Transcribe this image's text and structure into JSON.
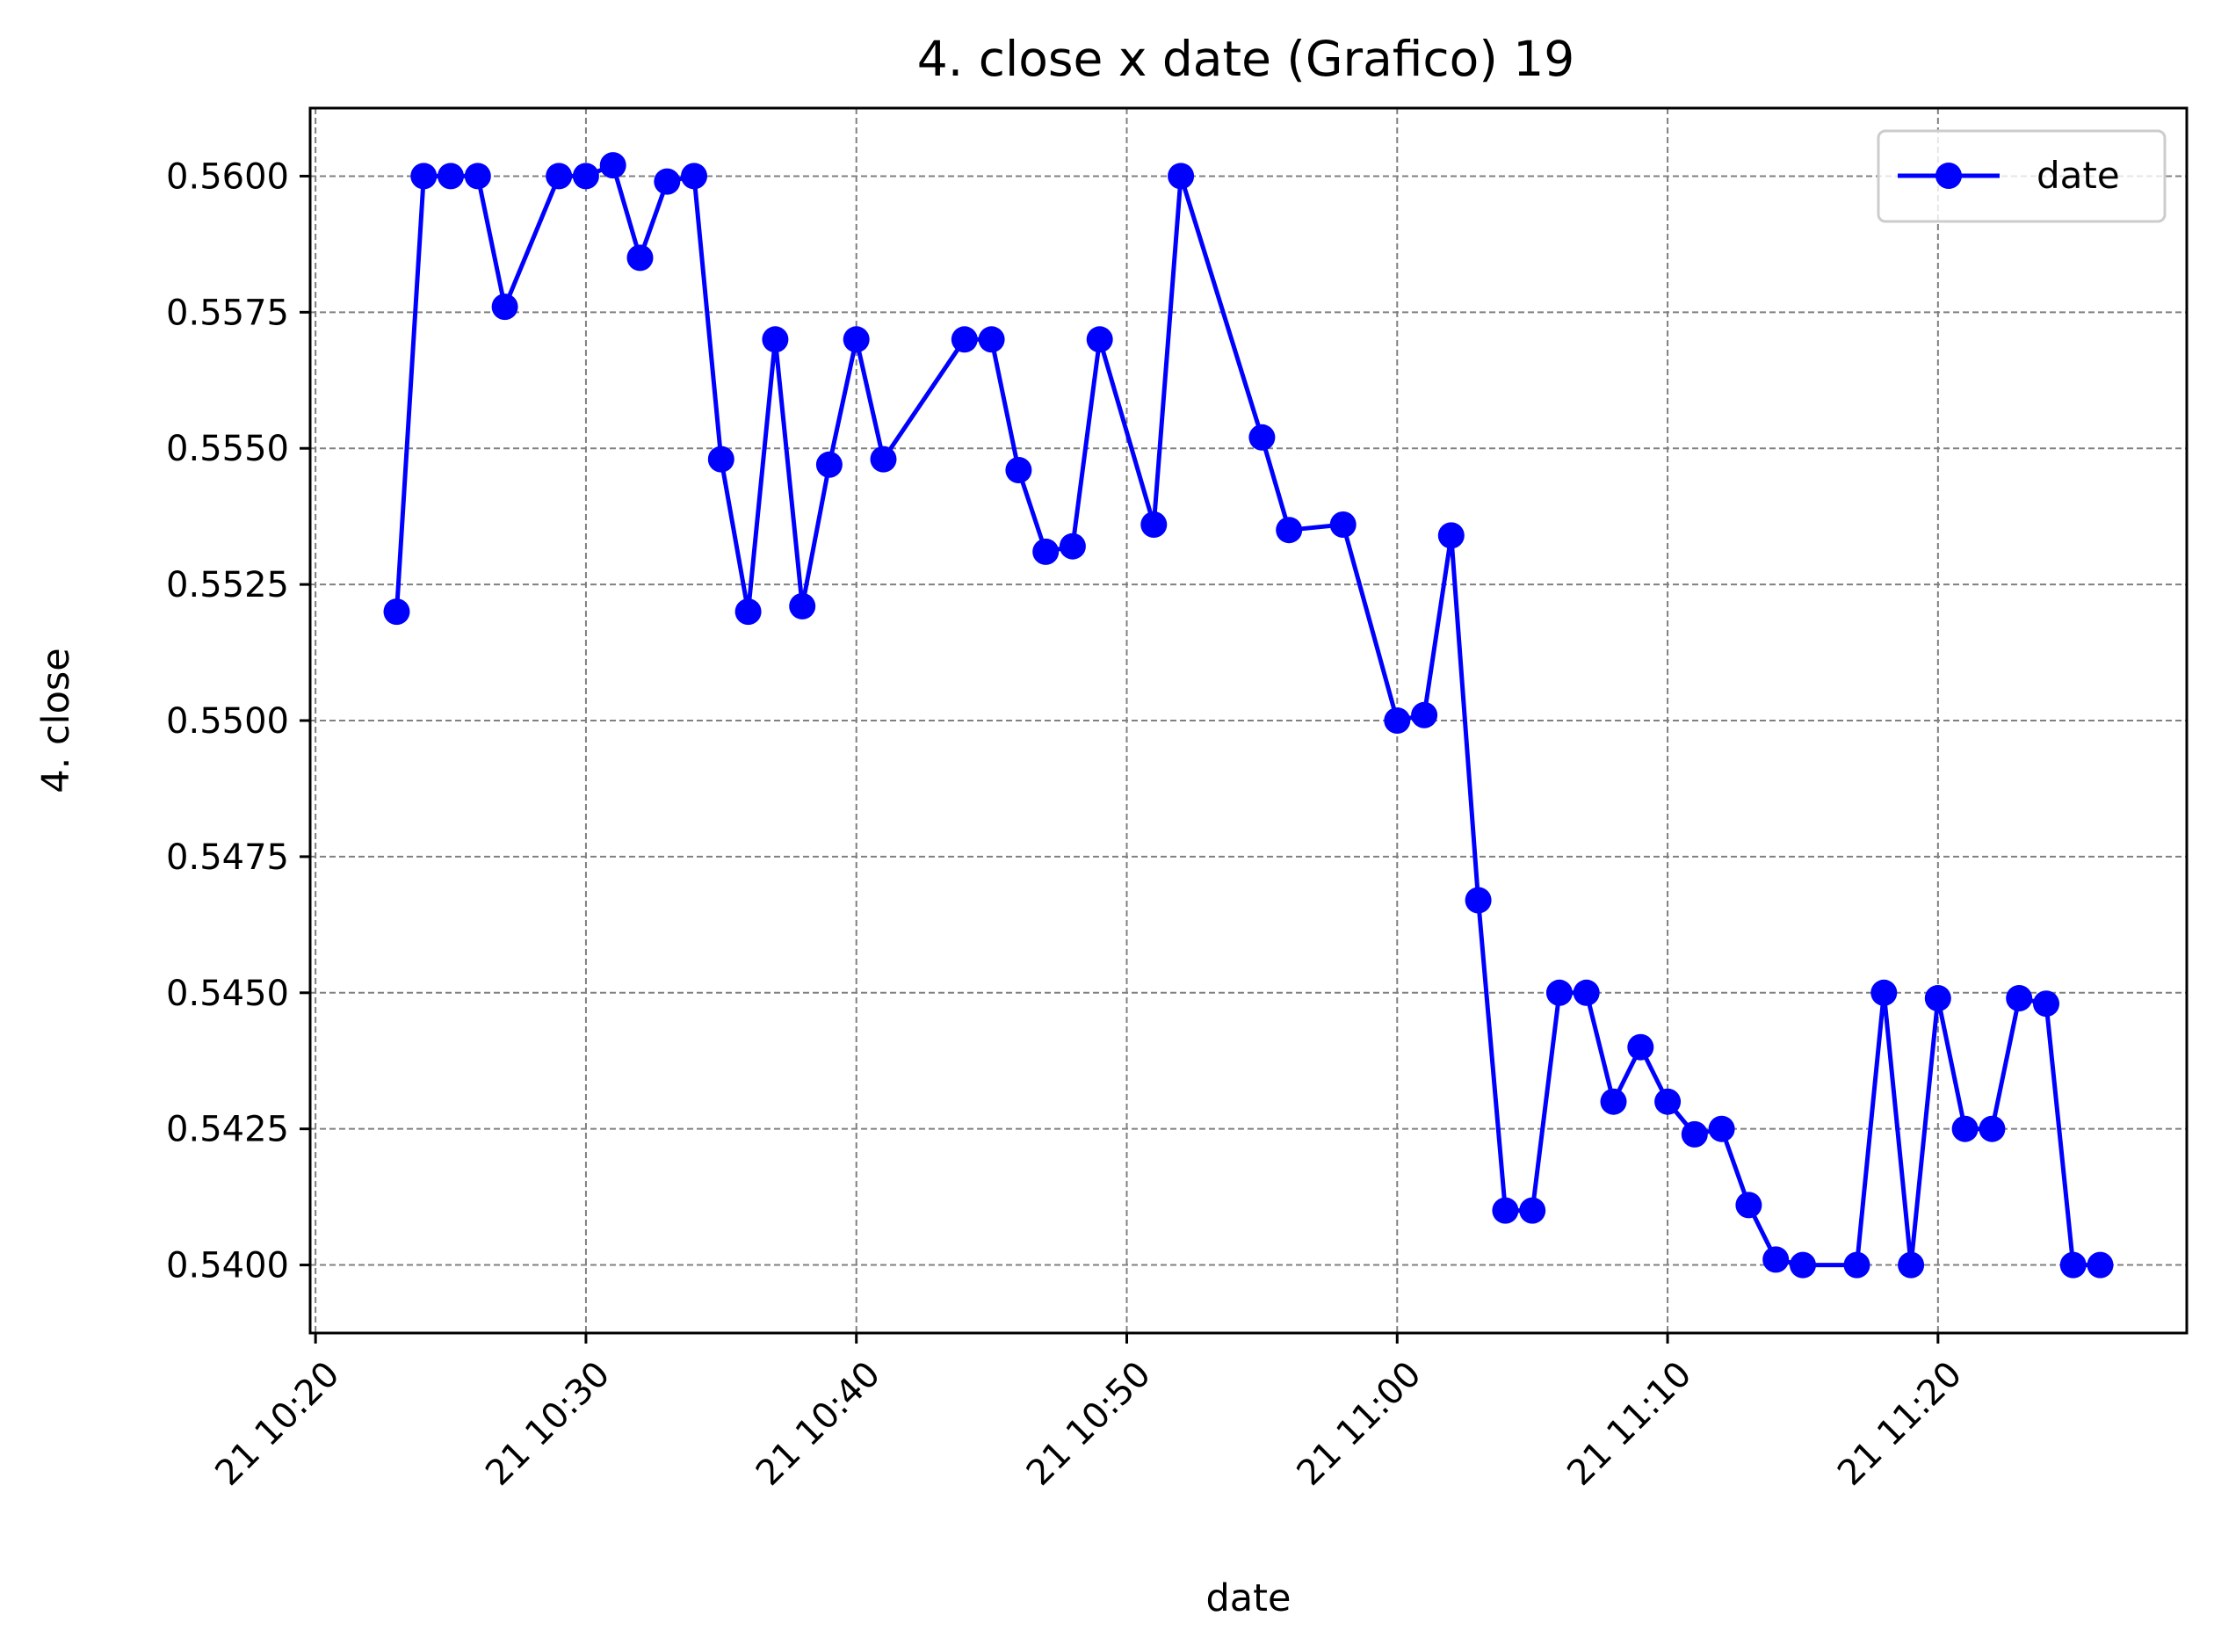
{
  "chart_data": {
    "type": "line",
    "title": "4. close x date (Grafico) 19",
    "xlabel": "date",
    "ylabel": "4. close",
    "xlim": [
      -0.2,
      69.2
    ],
    "ylim": [
      0.53875,
      0.56125
    ],
    "x_ticks": [
      {
        "value": 0,
        "label": "21 10:20"
      },
      {
        "value": 10,
        "label": "21 10:30"
      },
      {
        "value": 20,
        "label": "21 10:40"
      },
      {
        "value": 30,
        "label": "21 10:50"
      },
      {
        "value": 40,
        "label": "21 11:00"
      },
      {
        "value": 50,
        "label": "21 11:10"
      },
      {
        "value": 60,
        "label": "21 11:20"
      }
    ],
    "y_ticks": [
      {
        "value": 0.54,
        "label": "0.5400"
      },
      {
        "value": 0.5425,
        "label": "0.5425"
      },
      {
        "value": 0.545,
        "label": "0.5450"
      },
      {
        "value": 0.5475,
        "label": "0.5475"
      },
      {
        "value": 0.55,
        "label": "0.5500"
      },
      {
        "value": 0.5525,
        "label": "0.5525"
      },
      {
        "value": 0.555,
        "label": "0.5550"
      },
      {
        "value": 0.5575,
        "label": "0.5575"
      },
      {
        "value": 0.56,
        "label": "0.5600"
      }
    ],
    "grid": true,
    "legend": {
      "position": "top-right",
      "entries": [
        "date"
      ]
    },
    "series": [
      {
        "name": "date",
        "color": "#0000ff",
        "x_unit": "minutes after 21 10:20",
        "x": [
          3,
          4,
          5,
          6,
          7,
          9,
          10,
          11,
          12,
          13,
          14,
          15,
          16,
          17,
          18,
          19,
          20,
          21,
          24,
          25,
          26,
          27,
          28,
          29,
          31,
          32,
          35,
          36,
          38,
          40,
          41,
          42,
          43,
          44,
          45,
          46,
          47,
          48,
          49,
          50,
          51,
          52,
          53,
          54,
          55,
          57,
          58,
          59,
          60,
          61,
          62,
          63,
          64,
          65,
          66
        ],
        "values": [
          0.552,
          0.56,
          0.56,
          0.56,
          0.5576,
          0.56,
          0.56,
          0.5602,
          0.5585,
          0.5599,
          0.56,
          0.5548,
          0.552,
          0.557,
          0.5521,
          0.5547,
          0.557,
          0.5548,
          0.557,
          0.557,
          0.5546,
          0.5531,
          0.5532,
          0.557,
          0.5536,
          0.56,
          0.5552,
          0.5535,
          0.5536,
          0.55,
          0.5501,
          0.5534,
          0.5467,
          0.541,
          0.541,
          0.545,
          0.545,
          0.543,
          0.544,
          0.543,
          0.5424,
          0.5425,
          0.5411,
          0.5401,
          0.54,
          0.54,
          0.545,
          0.54,
          0.5449,
          0.5425,
          0.5425,
          0.5449,
          0.5448,
          0.54,
          0.54
        ]
      }
    ]
  }
}
